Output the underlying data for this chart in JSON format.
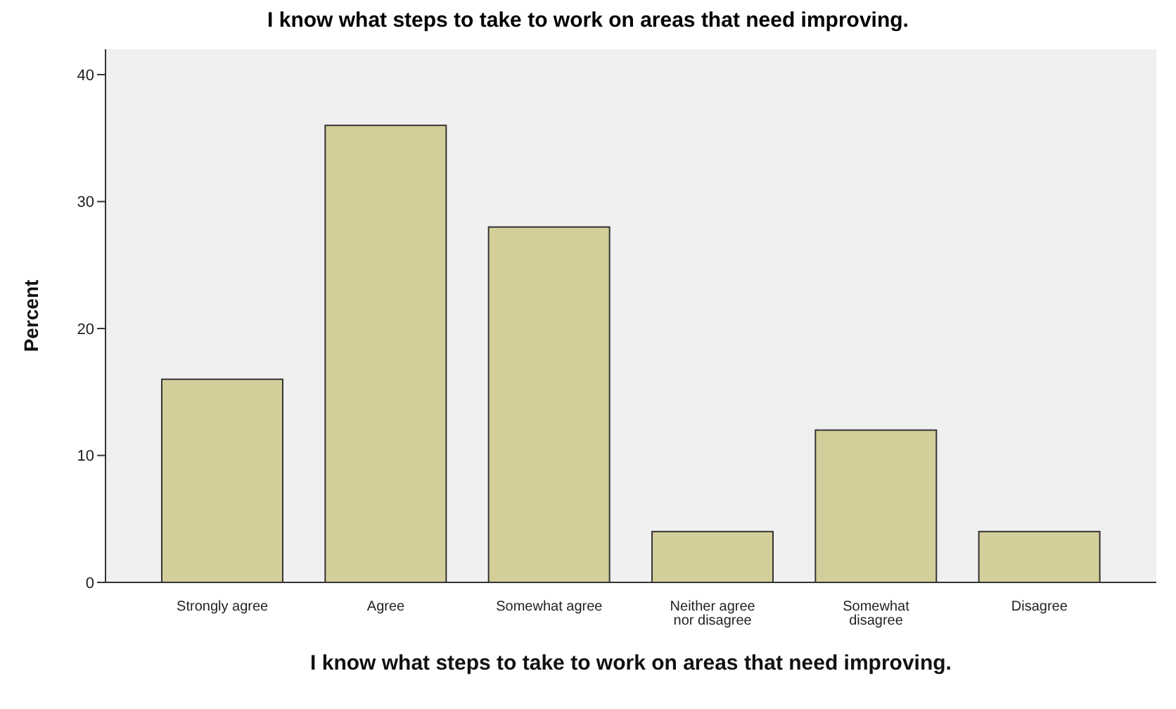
{
  "chart_data": {
    "type": "bar",
    "title": "I know what steps to take to work on areas that need improving.",
    "xlabel": "I know what steps to take to work on areas that need improving.",
    "ylabel": "Percent",
    "categories": [
      "Strongly agree",
      "Agree",
      "Somewhat agree",
      "Neither agree nor disagree",
      "Somewhat disagree",
      "Disagree"
    ],
    "values": [
      16,
      36,
      28,
      4,
      12,
      4
    ],
    "color": "#d4cf9a",
    "ylim": [
      0,
      42
    ],
    "yticks": [
      0,
      10,
      20,
      30,
      40
    ],
    "grid": false,
    "legend": false
  }
}
